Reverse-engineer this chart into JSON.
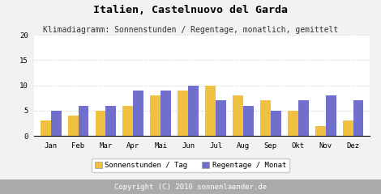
{
  "title": "Italien, Castelnuovo del Garda",
  "subtitle": "Klimadiagramm: Sonnenstunden / Regentage, monatlich, gemittelt",
  "months": [
    "Jan",
    "Feb",
    "Mar",
    "Apr",
    "Mai",
    "Jun",
    "Jul",
    "Aug",
    "Sep",
    "Okt",
    "Nov",
    "Dez"
  ],
  "sonnenstunden": [
    3,
    4,
    5,
    6,
    8,
    9,
    10,
    8,
    7,
    5,
    2,
    3
  ],
  "regentage": [
    5,
    6,
    6,
    9,
    9,
    10,
    7,
    6,
    5,
    7,
    8,
    7
  ],
  "color_sonnen": "#F0C040",
  "color_regen": "#7070CC",
  "background_color": "#F2F2F2",
  "plot_bg_color": "#FFFFFF",
  "footer_bg": "#AAAAAA",
  "footer_text": "Copyright (C) 2010 sonnenlaender.de",
  "ylabel_max": 20,
  "yticks": [
    0,
    5,
    10,
    15,
    20
  ],
  "legend_label_sonnen": "Sonnenstunden / Tag",
  "legend_label_regen": "Regentage / Monat",
  "title_fontsize": 9.5,
  "subtitle_fontsize": 7.0,
  "axis_fontsize": 6.5,
  "legend_fontsize": 6.5,
  "footer_fontsize": 6.5
}
